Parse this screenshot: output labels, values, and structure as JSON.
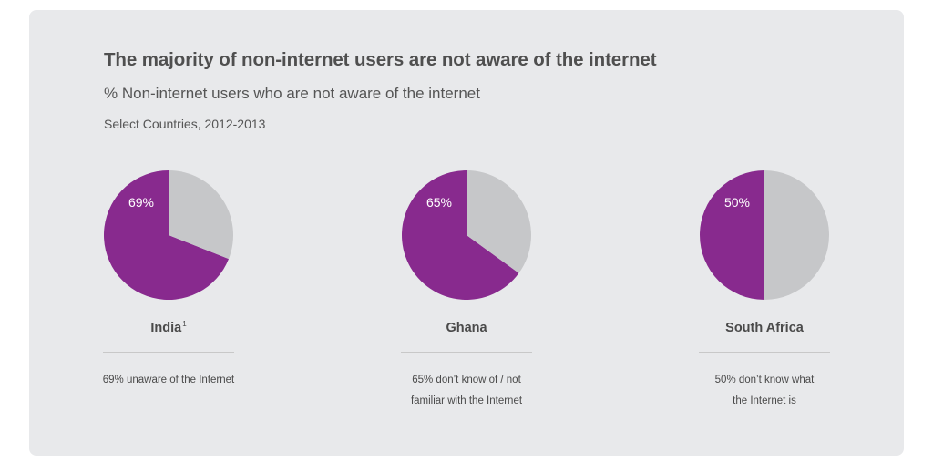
{
  "title": "The majority of non-internet users are not aware of the internet",
  "subtitle": "% Non-internet users who are not aware of the internet",
  "subtitle2": "Select Countries, 2012-2013",
  "colors": {
    "primary": "#882a8e",
    "secondary": "#c6c7c9",
    "card": "#e8e9eb"
  },
  "chart_data": [
    {
      "type": "pie",
      "category": "India",
      "footnote_marker": "1",
      "slices": [
        {
          "value": 69,
          "label": "69%",
          "color": "#882a8e"
        },
        {
          "value": 31,
          "label": "",
          "color": "#c6c7c9"
        }
      ],
      "note": [
        "69% unaware of the Internet"
      ]
    },
    {
      "type": "pie",
      "category": "Ghana",
      "footnote_marker": "",
      "slices": [
        {
          "value": 65,
          "label": "65%",
          "color": "#882a8e"
        },
        {
          "value": 35,
          "label": "",
          "color": "#c6c7c9"
        }
      ],
      "note": [
        "65% don’t know of / not",
        "familiar with the Internet"
      ]
    },
    {
      "type": "pie",
      "category": "South Africa",
      "footnote_marker": "",
      "slices": [
        {
          "value": 50,
          "label": "50%",
          "color": "#882a8e"
        },
        {
          "value": 50,
          "label": "",
          "color": "#c6c7c9"
        }
      ],
      "note": [
        "50% don’t know what",
        "the Internet is"
      ]
    }
  ]
}
